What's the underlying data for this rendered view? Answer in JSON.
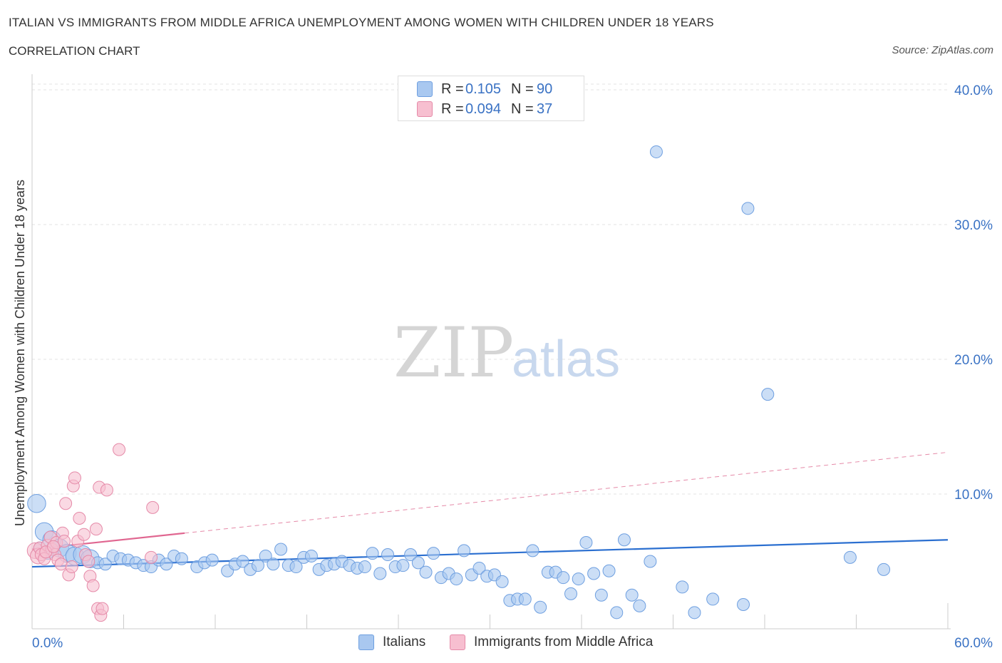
{
  "title": "ITALIAN VS IMMIGRANTS FROM MIDDLE AFRICA UNEMPLOYMENT AMONG WOMEN WITH CHILDREN UNDER 18 YEARS",
  "subtitle": "CORRELATION CHART",
  "source": "Source: ZipAtlas.com",
  "watermark": {
    "zip": "ZIP",
    "atlas": "atlas"
  },
  "legend_top": [
    {
      "r_label": "R =",
      "r_value": "0.105",
      "n_label": "N =",
      "n_value": "90",
      "color": "#a9c8f0",
      "border": "#6e9fe0"
    },
    {
      "r_label": "R =",
      "r_value": "0.094",
      "n_label": "N =",
      "n_value": "37",
      "color": "#f7bfd0",
      "border": "#e58aa8"
    }
  ],
  "legend_bottom": [
    {
      "label": "Italians",
      "color": "#a9c8f0",
      "border": "#6e9fe0"
    },
    {
      "label": "Immigrants from Middle Africa",
      "color": "#f7bfd0",
      "border": "#e58aa8"
    }
  ],
  "chart_data": {
    "type": "scatter",
    "title": "ITALIAN VS IMMIGRANTS FROM MIDDLE AFRICA UNEMPLOYMENT AMONG WOMEN WITH CHILDREN UNDER 18 YEARS",
    "xlabel": "",
    "ylabel": "Unemployment Among Women with Children Under 18 years",
    "xlim": [
      0,
      60
    ],
    "ylim": [
      0,
      40
    ],
    "x_tick_labels": [
      "0.0%",
      "60.0%"
    ],
    "y_ticks": [
      10,
      20,
      30,
      40
    ],
    "y_tick_labels": [
      "10.0%",
      "20.0%",
      "30.0%",
      "40.0%"
    ],
    "grid": true,
    "series": [
      {
        "name": "Italians",
        "color": "#a9c8f0",
        "stroke": "#6e9fe0",
        "trend": {
          "x": [
            0,
            60
          ],
          "y": [
            4.6,
            6.6
          ],
          "color": "#2b6fd0"
        },
        "points": [
          [
            0.3,
            9.3,
            1.5
          ],
          [
            0.8,
            7.2,
            1.5
          ],
          [
            1.3,
            6.6,
            1.5
          ],
          [
            1.8,
            6.0,
            1.5
          ],
          [
            2.3,
            5.6,
            1.5
          ],
          [
            2.8,
            5.4,
            1.5
          ],
          [
            3.3,
            5.5,
            1.5
          ],
          [
            3.8,
            5.2,
            1.5
          ],
          [
            4.3,
            4.9,
            1.0
          ],
          [
            4.8,
            4.8,
            1.0
          ],
          [
            5.3,
            5.4,
            1.0
          ],
          [
            5.8,
            5.2,
            1.0
          ],
          [
            6.3,
            5.1,
            1.0
          ],
          [
            6.8,
            4.9,
            1.0
          ],
          [
            7.3,
            4.7,
            1.0
          ],
          [
            7.8,
            4.6,
            1.0
          ],
          [
            8.3,
            5.1,
            1.0
          ],
          [
            8.8,
            4.8,
            1.0
          ],
          [
            9.3,
            5.4,
            1.0
          ],
          [
            9.8,
            5.2,
            1.0
          ],
          [
            10.8,
            4.6,
            1.0
          ],
          [
            11.3,
            4.9,
            1.0
          ],
          [
            11.8,
            5.1,
            1.0
          ],
          [
            12.8,
            4.3,
            1.0
          ],
          [
            13.3,
            4.8,
            1.0
          ],
          [
            13.8,
            5.0,
            1.0
          ],
          [
            14.3,
            4.4,
            1.0
          ],
          [
            14.8,
            4.7,
            1.0
          ],
          [
            15.3,
            5.4,
            1.0
          ],
          [
            15.8,
            4.8,
            1.0
          ],
          [
            16.3,
            5.9,
            1.0
          ],
          [
            16.8,
            4.7,
            1.0
          ],
          [
            17.3,
            4.6,
            1.0
          ],
          [
            17.8,
            5.3,
            1.0
          ],
          [
            18.3,
            5.4,
            1.0
          ],
          [
            18.8,
            4.4,
            1.0
          ],
          [
            19.3,
            4.7,
            1.0
          ],
          [
            19.8,
            4.8,
            1.0
          ],
          [
            20.3,
            5.0,
            1.0
          ],
          [
            20.8,
            4.7,
            1.0
          ],
          [
            21.3,
            4.5,
            1.0
          ],
          [
            21.8,
            4.6,
            1.0
          ],
          [
            22.3,
            5.6,
            1.0
          ],
          [
            22.8,
            4.1,
            1.0
          ],
          [
            23.3,
            5.5,
            1.0
          ],
          [
            23.8,
            4.6,
            1.0
          ],
          [
            24.3,
            4.7,
            1.0
          ],
          [
            24.8,
            5.5,
            1.0
          ],
          [
            25.3,
            4.9,
            1.0
          ],
          [
            25.8,
            4.2,
            1.0
          ],
          [
            26.3,
            5.6,
            1.0
          ],
          [
            26.8,
            3.8,
            1.0
          ],
          [
            27.3,
            4.1,
            1.0
          ],
          [
            27.8,
            3.7,
            1.0
          ],
          [
            28.3,
            5.8,
            1.0
          ],
          [
            28.8,
            4.0,
            1.0
          ],
          [
            29.3,
            4.5,
            1.0
          ],
          [
            29.8,
            3.9,
            1.0
          ],
          [
            30.3,
            4.0,
            1.0
          ],
          [
            30.8,
            3.5,
            1.0
          ],
          [
            31.3,
            2.1,
            1.0
          ],
          [
            31.8,
            2.2,
            1.0
          ],
          [
            32.3,
            2.2,
            1.0
          ],
          [
            32.8,
            5.8,
            1.0
          ],
          [
            33.3,
            1.6,
            1.0
          ],
          [
            33.8,
            4.2,
            1.0
          ],
          [
            34.3,
            4.2,
            1.0
          ],
          [
            34.8,
            3.8,
            1.0
          ],
          [
            35.3,
            2.6,
            1.0
          ],
          [
            35.8,
            3.7,
            1.0
          ],
          [
            36.3,
            6.4,
            1.0
          ],
          [
            36.8,
            4.1,
            1.0
          ],
          [
            37.3,
            2.5,
            1.0
          ],
          [
            37.8,
            4.3,
            1.0
          ],
          [
            38.3,
            1.2,
            1.0
          ],
          [
            38.8,
            6.6,
            1.0
          ],
          [
            39.3,
            2.5,
            1.0
          ],
          [
            39.8,
            1.7,
            1.0
          ],
          [
            40.5,
            5.0,
            1.0
          ],
          [
            40.9,
            35.4,
            1.0
          ],
          [
            42.6,
            3.1,
            1.0
          ],
          [
            43.4,
            1.2,
            1.0
          ],
          [
            44.6,
            2.2,
            1.0
          ],
          [
            46.6,
            1.8,
            1.0
          ],
          [
            46.9,
            31.2,
            1.0
          ],
          [
            48.2,
            17.4,
            1.0
          ],
          [
            53.6,
            5.3,
            1.0
          ],
          [
            55.8,
            4.4,
            1.0
          ],
          [
            0.5,
            6.0,
            1.0
          ],
          [
            1.0,
            5.6,
            1.0
          ]
        ]
      },
      {
        "name": "Immigrants from Middle Africa",
        "color": "#f7bfd0",
        "stroke": "#e58aa8",
        "trend": {
          "x": [
            0,
            10
          ],
          "y": [
            5.9,
            7.1
          ],
          "color": "#e06690"
        },
        "trend_ext": {
          "x": [
            10,
            60
          ],
          "y": [
            7.1,
            13.1
          ],
          "color": "#e58aa8"
        },
        "points": [
          [
            0.2,
            5.8,
            1.3
          ],
          [
            0.4,
            5.4,
            1.3
          ],
          [
            0.5,
            6.0,
            1.0
          ],
          [
            0.6,
            5.5,
            1.0
          ],
          [
            0.8,
            5.2,
            1.0
          ],
          [
            1.0,
            6.2,
            1.0
          ],
          [
            1.2,
            6.8,
            1.0
          ],
          [
            1.3,
            5.9,
            1.0
          ],
          [
            1.5,
            5.5,
            1.0
          ],
          [
            1.6,
            6.4,
            1.0
          ],
          [
            1.7,
            5.1,
            1.0
          ],
          [
            1.9,
            4.8,
            1.0
          ],
          [
            2.0,
            7.1,
            1.0
          ],
          [
            2.1,
            6.5,
            1.0
          ],
          [
            2.2,
            9.3,
            1.0
          ],
          [
            2.4,
            4.0,
            1.0
          ],
          [
            2.6,
            4.6,
            1.0
          ],
          [
            2.7,
            10.6,
            1.0
          ],
          [
            2.8,
            11.2,
            1.0
          ],
          [
            3.0,
            6.5,
            1.0
          ],
          [
            3.1,
            8.2,
            1.0
          ],
          [
            3.4,
            7.0,
            1.0
          ],
          [
            3.5,
            5.5,
            1.0
          ],
          [
            3.7,
            5.0,
            1.0
          ],
          [
            3.8,
            3.9,
            1.0
          ],
          [
            4.0,
            3.2,
            1.0
          ],
          [
            4.2,
            7.4,
            1.0
          ],
          [
            4.3,
            1.5,
            1.0
          ],
          [
            4.4,
            10.5,
            1.0
          ],
          [
            4.5,
            1.0,
            1.0
          ],
          [
            4.6,
            1.5,
            1.0
          ],
          [
            4.9,
            10.3,
            1.0
          ],
          [
            5.7,
            13.3,
            1.0
          ],
          [
            7.9,
            9.0,
            1.0
          ],
          [
            7.8,
            5.3,
            1.0
          ],
          [
            0.9,
            5.7,
            1.0
          ],
          [
            1.4,
            6.1,
            1.0
          ]
        ]
      }
    ]
  }
}
